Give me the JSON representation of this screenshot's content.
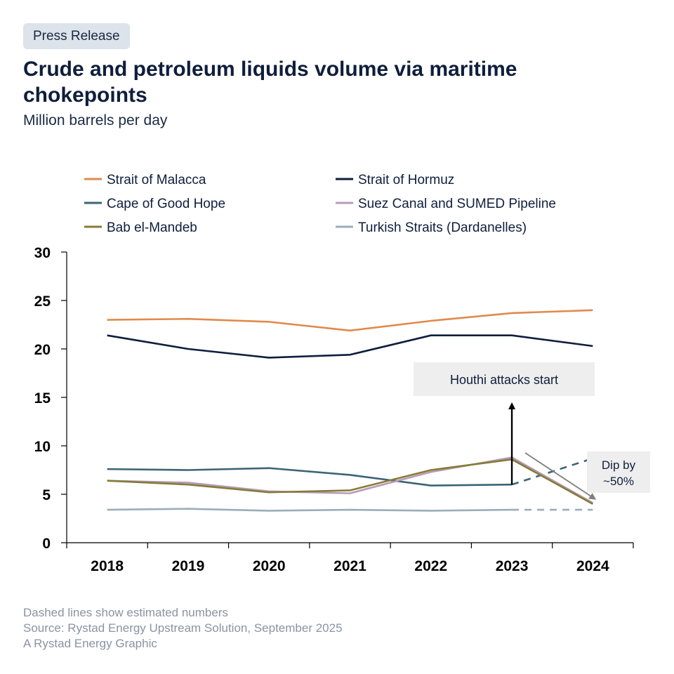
{
  "header": {
    "badge": "Press Release",
    "title": "Crude and petroleum liquids volume via maritime chokepoints",
    "subtitle": "Million barrels per day"
  },
  "chart_data": {
    "type": "line",
    "categories": [
      "2018",
      "2019",
      "2020",
      "2021",
      "2022",
      "2023",
      "2024"
    ],
    "ylim": [
      0,
      30
    ],
    "yticks": [
      0,
      5,
      10,
      15,
      20,
      25,
      30
    ],
    "grid": false,
    "legend_position": "top",
    "estimated_from_index": 5,
    "series": [
      {
        "name": "Strait of Malacca",
        "color": "#e08a4c",
        "values": [
          23.0,
          23.1,
          22.8,
          21.9,
          22.9,
          23.7,
          24.0
        ]
      },
      {
        "name": "Strait of Hormuz",
        "color": "#0f1e3c",
        "values": [
          21.4,
          20.0,
          19.1,
          19.4,
          21.4,
          21.4,
          20.3
        ]
      },
      {
        "name": "Cape of Good Hope",
        "color": "#3b6478",
        "values": [
          7.6,
          7.5,
          7.7,
          7.0,
          5.9,
          6.0,
          8.7
        ]
      },
      {
        "name": "Suez Canal and SUMED Pipeline",
        "color": "#b89ab5",
        "values": [
          6.4,
          6.2,
          5.3,
          5.1,
          7.3,
          8.8,
          4.1
        ]
      },
      {
        "name": "Bab el-Mandeb",
        "color": "#847c38",
        "values": [
          6.4,
          6.0,
          5.2,
          5.4,
          7.5,
          8.6,
          4.0
        ]
      },
      {
        "name": "Turkish Straits (Dardanelles)",
        "color": "#9aadba",
        "values": [
          3.4,
          3.5,
          3.3,
          3.4,
          3.3,
          3.4,
          3.4
        ]
      }
    ],
    "annotations": [
      {
        "text": "Houthi attacks start",
        "x": "2023"
      },
      {
        "text": "Dip by ~50%",
        "x": "2024"
      }
    ]
  },
  "footer": {
    "lines": [
      "Dashed lines show estimated numbers",
      "Source: Rystad Energy Upstream Solution, September 2025",
      "A Rystad Energy Graphic"
    ]
  }
}
